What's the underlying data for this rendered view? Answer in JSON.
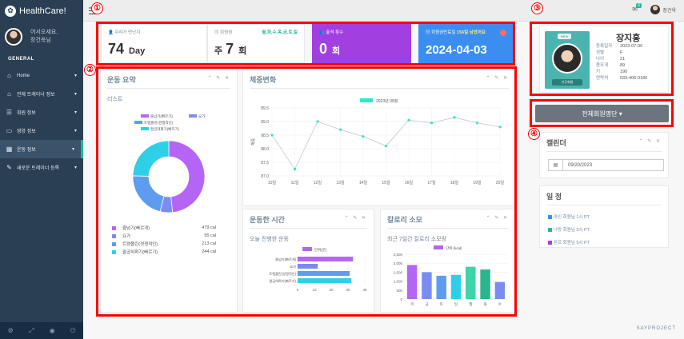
{
  "app": {
    "title": "HealthCare!"
  },
  "sidebar": {
    "welcome": "어서오세요,",
    "username": "장건욱님",
    "section": "GENERAL",
    "items": [
      {
        "label": "Home",
        "icon": "home-icon"
      },
      {
        "label": "전체 트레이너 정보",
        "icon": "home-icon"
      },
      {
        "label": "회원 정보",
        "icon": "list-icon"
      },
      {
        "label": "영양 정보",
        "icon": "monitor-icon"
      },
      {
        "label": "운동 정보",
        "icon": "table-icon"
      },
      {
        "label": "새로운 트레이너 등록",
        "icon": "edit-icon"
      }
    ]
  },
  "topbar": {
    "mail_count": "6",
    "user": "장건욱"
  },
  "stats": {
    "card1": {
      "label": "우리가 만난지",
      "value": "74",
      "unit": "Day"
    },
    "card2": {
      "label": "회원권",
      "days": "월,화,수,목,금,토,일",
      "prefix": "주",
      "value": "7",
      "unit": "회"
    },
    "card3": {
      "label": "출석 횟수",
      "value": "0",
      "unit": "회"
    },
    "card4": {
      "label": "회원권만료일",
      "remaining": "156일 남았어요",
      "value": "2024-04-03"
    }
  },
  "exercise_summary": {
    "title": "운동 요약",
    "subtitle": "리스트",
    "items": [
      {
        "name": "줄넘기(빠르게)",
        "value": "479 cal",
        "color": "#b565f6"
      },
      {
        "name": "요가",
        "value": "55 cal",
        "color": "#7b8cf0"
      },
      {
        "name": "트램폴린(경쟁적인)",
        "value": "213 cal",
        "color": "#5e9cf0"
      },
      {
        "name": "팔굽혀펴기(빠르기)",
        "value": "244 cal",
        "color": "#2ed0e8"
      }
    ]
  },
  "weight_panel": {
    "title": "체중변화",
    "ylabel": "체중"
  },
  "exercise_time_panel": {
    "title": "운동한 시간",
    "subtitle": "오늘 진행한 운동"
  },
  "calorie_panel": {
    "title": "칼로리 소모",
    "subtitle": "최근 7일간 칼로리 소모량"
  },
  "member": {
    "badge": "NEW",
    "name": "장지홍",
    "tag": "신규회원",
    "fields": [
      {
        "k": "등록일자",
        "v": "2023-07-06"
      },
      {
        "k": "성별",
        "v": "F"
      },
      {
        "k": "나이",
        "v": "21"
      },
      {
        "k": "몸무게",
        "v": "89"
      },
      {
        "k": "키",
        "v": "190"
      },
      {
        "k": "연락처",
        "v": "033-406-0180"
      }
    ]
  },
  "member_list_button": "전체회원명단",
  "calendar": {
    "title": "캘린더",
    "date": "09/20/2023"
  },
  "schedule": {
    "title": "일 정",
    "items": [
      {
        "text": "마인 회원님 1시 PT",
        "color": "#3b8ef0"
      },
      {
        "text": "나랑 회원님 3시 PT",
        "color": "#26b99a"
      },
      {
        "text": "몬르 회원님 5시 PT",
        "color": "#a23fe0"
      }
    ]
  },
  "markers": [
    "①",
    "②",
    "③",
    "④"
  ],
  "footer": "SAYPROJECT",
  "chart_data": [
    {
      "type": "pie",
      "title": "",
      "categories": [
        "줄넘기(빠르기)",
        "요가",
        "트램폴린(경쟁적인)",
        "팔굽혀펴기(빠르기)"
      ],
      "values": [
        479,
        55,
        213,
        244
      ],
      "colors": [
        "#b565f6",
        "#7b8cf0",
        "#5e9cf0",
        "#2ed0e8"
      ]
    },
    {
      "type": "line",
      "title": "",
      "series": [
        {
          "name": "2023년 09월",
          "values": [
            88.5,
            87.25,
            89.0,
            88.7,
            88.45,
            88.1,
            89.05,
            88.95,
            89.15,
            88.95,
            88.8
          ]
        }
      ],
      "x": [
        "10일",
        "11일",
        "12일",
        "13일",
        "14일",
        "15일",
        "16일",
        "17일",
        "18일",
        "19일",
        "20일"
      ],
      "ylabel": "체중",
      "ylim": [
        87.0,
        89.5
      ],
      "yticks": [
        "87.0",
        "87.5",
        "88.0",
        "88.5",
        "89.0",
        "89.5"
      ],
      "color": "#2ee8c8"
    },
    {
      "type": "bar",
      "title": "",
      "orientation": "horizontal",
      "series": [
        {
          "name": "만위(분)",
          "values": [
            33,
            12,
            31,
            32
          ]
        }
      ],
      "categories": [
        "줄넘기(빠르게)",
        "요가",
        "트램폴린(경쟁적인)",
        "팔굽혀펴기(빠르기)"
      ],
      "xlim": [
        0,
        40
      ],
      "xticks": [
        "0",
        "10",
        "20",
        "30",
        "40"
      ],
      "colors": [
        "#b565f6",
        "#7b8cf0",
        "#5e9cf0",
        "#2ed0e8"
      ]
    },
    {
      "type": "bar",
      "title": "",
      "series": [
        {
          "name": "단위 (kcal)",
          "values": [
            1900,
            1500,
            1300,
            1350,
            1800,
            1650,
            950
          ]
        }
      ],
      "categories": [
        "목",
        "금",
        "토",
        "일",
        "월",
        "화",
        "수"
      ],
      "ylim": [
        0,
        2500
      ],
      "yticks": [
        "0",
        "500",
        "1,000",
        "1,500",
        "2,000",
        "2,500"
      ],
      "colors": [
        "#b565f6",
        "#7b8cf0",
        "#5e9cf0",
        "#2ed0e8",
        "#3ed3a8",
        "#2ab58f",
        "#7b8cf0"
      ]
    }
  ]
}
